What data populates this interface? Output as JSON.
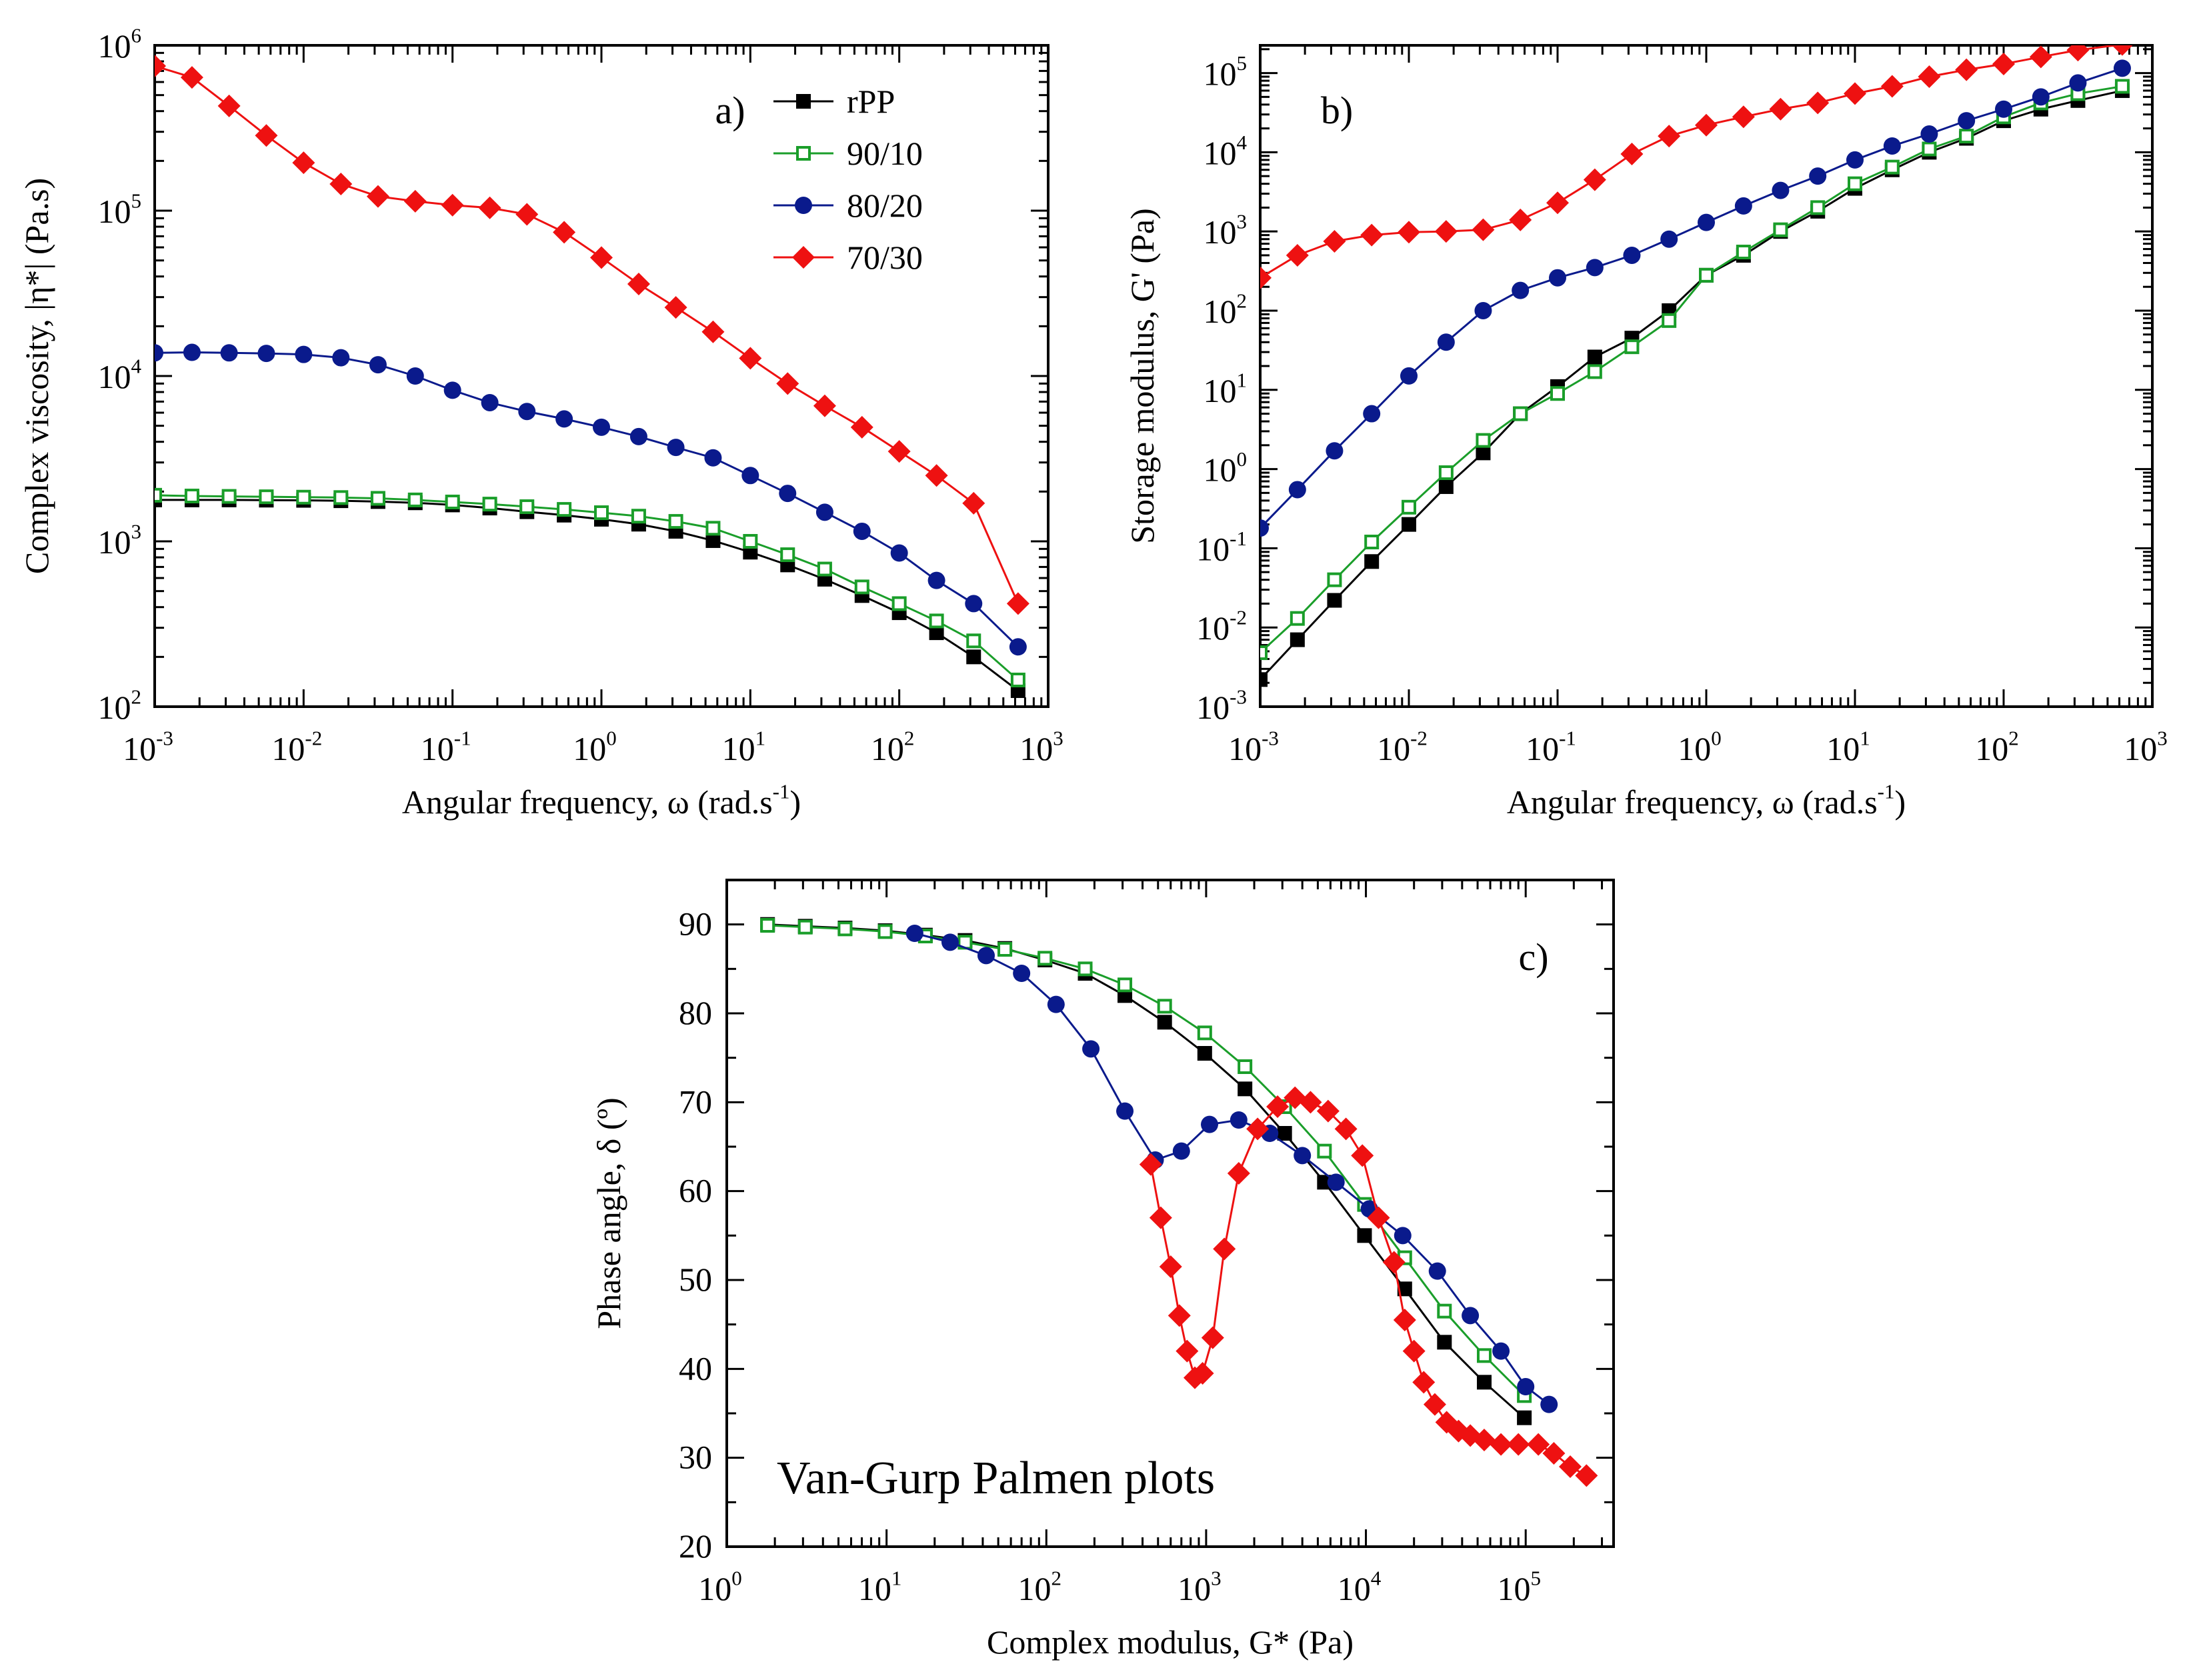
{
  "chart_data": [
    {
      "type": "line",
      "panel_label": "a)",
      "xlabel": "Angular frequency, ω (rad.s",
      "xlabel_sup": "-1",
      "xlabel_end": ")",
      "ylabel": "Complex viscosity, |η*| (Pa.s)",
      "xscale": "log",
      "yscale": "log",
      "xlim_exp": [
        -3,
        3
      ],
      "ylim_exp": [
        2,
        6
      ],
      "x_ticks": [
        {
          "base": "10",
          "exp": "-3"
        },
        {
          "base": "10",
          "exp": "-2"
        },
        {
          "base": "10",
          "exp": "-1"
        },
        {
          "base": "10",
          "exp": "0"
        },
        {
          "base": "10",
          "exp": "1"
        },
        {
          "base": "10",
          "exp": "2"
        },
        {
          "base": "10",
          "exp": "3"
        }
      ],
      "y_ticks": [
        {
          "base": "10",
          "exp": "2"
        },
        {
          "base": "10",
          "exp": "3"
        },
        {
          "base": "10",
          "exp": "4"
        },
        {
          "base": "10",
          "exp": "5"
        },
        {
          "base": "10",
          "exp": "6"
        }
      ],
      "legend": {
        "placement": "top-right",
        "entries": [
          "rPP",
          "90/10",
          "80/20",
          "70/30"
        ]
      },
      "series": [
        {
          "name": "rPP",
          "color": "#000000",
          "marker": "square-filled",
          "x": [
            0.001,
            0.00178,
            0.00316,
            0.00562,
            0.01,
            0.0178,
            0.0316,
            0.0562,
            0.1,
            0.178,
            0.316,
            0.562,
            1,
            1.78,
            3.16,
            5.62,
            10,
            17.8,
            31.6,
            56.2,
            100,
            178,
            316,
            628
          ],
          "y": [
            1780,
            1780,
            1780,
            1775,
            1770,
            1760,
            1740,
            1710,
            1660,
            1590,
            1510,
            1440,
            1360,
            1270,
            1150,
            1010,
            860,
            720,
            590,
            470,
            370,
            280,
            200,
            125
          ]
        },
        {
          "name": "90/10",
          "color": "#1a9e2a",
          "marker": "square-open",
          "x": [
            0.001,
            0.00178,
            0.00316,
            0.00562,
            0.01,
            0.0178,
            0.0316,
            0.0562,
            0.1,
            0.178,
            0.316,
            0.562,
            1,
            1.78,
            3.16,
            5.62,
            10,
            17.8,
            31.6,
            56.2,
            100,
            178,
            316,
            628
          ],
          "y": [
            1900,
            1880,
            1870,
            1860,
            1850,
            1840,
            1820,
            1780,
            1730,
            1680,
            1620,
            1560,
            1490,
            1420,
            1320,
            1200,
            1000,
            830,
            680,
            530,
            420,
            330,
            250,
            145
          ]
        },
        {
          "name": "80/20",
          "color": "#0a1a8c",
          "marker": "circle-filled",
          "x": [
            0.001,
            0.00178,
            0.00316,
            0.00562,
            0.01,
            0.0178,
            0.0316,
            0.0562,
            0.1,
            0.178,
            0.316,
            0.562,
            1,
            1.78,
            3.16,
            5.62,
            10,
            17.8,
            31.6,
            56.2,
            100,
            178,
            316,
            628
          ],
          "y": [
            13800,
            13900,
            13800,
            13700,
            13500,
            12900,
            11700,
            10000,
            8200,
            6900,
            6100,
            5500,
            4900,
            4300,
            3700,
            3200,
            2500,
            1950,
            1500,
            1150,
            850,
            580,
            420,
            230
          ]
        },
        {
          "name": "70/30",
          "color": "#ee1111",
          "marker": "diamond-filled",
          "x": [
            0.001,
            0.00178,
            0.00316,
            0.00562,
            0.01,
            0.0178,
            0.0316,
            0.0562,
            0.1,
            0.178,
            0.316,
            0.562,
            1,
            1.78,
            3.16,
            5.62,
            10,
            17.8,
            31.6,
            56.2,
            100,
            178,
            316,
            628
          ],
          "y": [
            750000,
            640000,
            430000,
            285000,
            195000,
            145000,
            122000,
            114000,
            108000,
            104000,
            95000,
            74000,
            52000,
            36000,
            26000,
            18500,
            12800,
            9000,
            6600,
            4900,
            3500,
            2500,
            1700,
            420
          ]
        }
      ]
    },
    {
      "type": "line",
      "panel_label": "b)",
      "xlabel": "Angular frequency, ω (rad.s",
      "xlabel_sup": "-1",
      "xlabel_end": ")",
      "ylabel": "Storage modulus, G' (Pa)",
      "xscale": "log",
      "yscale": "log",
      "xlim_exp": [
        -3,
        3
      ],
      "ylim_exp": [
        -3,
        5.35
      ],
      "x_ticks": [
        {
          "base": "10",
          "exp": "-3"
        },
        {
          "base": "10",
          "exp": "-2"
        },
        {
          "base": "10",
          "exp": "-1"
        },
        {
          "base": "10",
          "exp": "0"
        },
        {
          "base": "10",
          "exp": "1"
        },
        {
          "base": "10",
          "exp": "2"
        },
        {
          "base": "10",
          "exp": "3"
        }
      ],
      "y_ticks": [
        {
          "base": "10",
          "exp": "-3"
        },
        {
          "base": "10",
          "exp": "-2"
        },
        {
          "base": "10",
          "exp": "-1"
        },
        {
          "base": "10",
          "exp": "0"
        },
        {
          "base": "10",
          "exp": "1"
        },
        {
          "base": "10",
          "exp": "2"
        },
        {
          "base": "10",
          "exp": "3"
        },
        {
          "base": "10",
          "exp": "4"
        },
        {
          "base": "10",
          "exp": "5"
        }
      ],
      "series": [
        {
          "name": "rPP",
          "color": "#000000",
          "marker": "square-filled",
          "x": [
            0.001,
            0.00178,
            0.00316,
            0.00562,
            0.01,
            0.0178,
            0.0316,
            0.0562,
            0.1,
            0.178,
            0.316,
            0.562,
            1,
            1.78,
            3.16,
            5.62,
            10,
            17.8,
            31.6,
            56.2,
            100,
            178,
            316,
            628
          ],
          "y": [
            0.0022,
            0.007,
            0.022,
            0.068,
            0.2,
            0.6,
            1.6,
            5,
            11,
            26,
            45,
            100,
            280,
            500,
            1000,
            1800,
            3500,
            6000,
            10000,
            15000,
            25000,
            35000,
            45000,
            60000
          ]
        },
        {
          "name": "90/10",
          "color": "#1a9e2a",
          "marker": "square-open",
          "x": [
            0.001,
            0.00178,
            0.00316,
            0.00562,
            0.01,
            0.0178,
            0.0316,
            0.0562,
            0.1,
            0.178,
            0.316,
            0.562,
            1,
            1.78,
            3.16,
            5.62,
            10,
            17.8,
            31.6,
            56.2,
            100,
            178,
            316,
            628
          ],
          "y": [
            0.0048,
            0.013,
            0.04,
            0.12,
            0.33,
            0.9,
            2.3,
            5,
            9,
            17,
            35,
            75,
            280,
            550,
            1050,
            2000,
            4000,
            6500,
            11000,
            16000,
            28000,
            42000,
            55000,
            68000
          ]
        },
        {
          "name": "80/20",
          "color": "#0a1a8c",
          "marker": "circle-filled",
          "x": [
            0.001,
            0.00178,
            0.00316,
            0.00562,
            0.01,
            0.0178,
            0.0316,
            0.0562,
            0.1,
            0.178,
            0.316,
            0.562,
            1,
            1.78,
            3.16,
            5.62,
            10,
            17.8,
            31.6,
            56.2,
            100,
            178,
            316,
            628
          ],
          "y": [
            0.18,
            0.55,
            1.7,
            5,
            15,
            40,
            100,
            180,
            260,
            350,
            500,
            800,
            1300,
            2100,
            3300,
            5000,
            8000,
            12000,
            17000,
            25000,
            35000,
            50000,
            75000,
            115000
          ]
        },
        {
          "name": "70/30",
          "color": "#ee1111",
          "marker": "diamond-filled",
          "x": [
            0.001,
            0.00178,
            0.00316,
            0.00562,
            0.01,
            0.0178,
            0.0316,
            0.0562,
            0.1,
            0.178,
            0.316,
            0.562,
            1,
            1.78,
            3.16,
            5.62,
            10,
            17.8,
            31.6,
            56.2,
            100,
            178,
            316,
            628
          ],
          "y": [
            260,
            500,
            750,
            900,
            980,
            1000,
            1050,
            1400,
            2300,
            4500,
            9500,
            16000,
            22000,
            28000,
            35000,
            42000,
            55000,
            68000,
            90000,
            110000,
            130000,
            160000,
            195000,
            230000
          ]
        }
      ]
    },
    {
      "type": "line",
      "panel_label": "c)",
      "annotation": "Van-Gurp Palmen plots",
      "xlabel": "Complex modulus, G* (Pa)",
      "ylabel": "Phase angle, δ (º)",
      "xscale": "log",
      "yscale": "linear",
      "xlim_exp": [
        0,
        5.55
      ],
      "ylim": [
        20,
        95
      ],
      "x_ticks": [
        {
          "base": "10",
          "exp": "0"
        },
        {
          "base": "10",
          "exp": "1"
        },
        {
          "base": "10",
          "exp": "2"
        },
        {
          "base": "10",
          "exp": "3"
        },
        {
          "base": "10",
          "exp": "4"
        },
        {
          "base": "10",
          "exp": "5"
        }
      ],
      "y_ticks": [
        "20",
        "30",
        "40",
        "50",
        "60",
        "70",
        "80",
        "90"
      ],
      "series": [
        {
          "name": "rPP",
          "color": "#000000",
          "marker": "square-filled",
          "x": [
            1.8,
            3.1,
            5.5,
            9.8,
            17.5,
            31,
            55,
            98,
            175,
            310,
            550,
            980,
            1750,
            3100,
            5500,
            9800,
            17500,
            31000,
            55000,
            98000
          ],
          "y": [
            90,
            89.8,
            89.6,
            89.3,
            88.8,
            88.2,
            87.3,
            86,
            84.5,
            82,
            79,
            75.5,
            71.5,
            66.5,
            61,
            55,
            49,
            43,
            38.5,
            34.5
          ]
        },
        {
          "name": "90/10",
          "color": "#1a9e2a",
          "marker": "square-open",
          "x": [
            1.8,
            3.1,
            5.5,
            9.8,
            17.5,
            31,
            55,
            98,
            175,
            310,
            550,
            980,
            1750,
            3100,
            5500,
            9800,
            17500,
            31000,
            55000,
            98000
          ],
          "y": [
            89.9,
            89.7,
            89.5,
            89.2,
            88.7,
            88,
            87.2,
            86.2,
            85,
            83.2,
            80.8,
            77.8,
            74,
            69.5,
            64.5,
            58.5,
            52.5,
            46.5,
            41.5,
            37
          ]
        },
        {
          "name": "80/20",
          "color": "#0a1a8c",
          "marker": "circle-filled",
          "x": [
            15,
            25,
            42,
            70,
            115,
            190,
            310,
            480,
            700,
            1050,
            1600,
            2500,
            4000,
            6500,
            10500,
            17000,
            28000,
            45000,
            70000,
            100000,
            140000
          ],
          "y": [
            89,
            88,
            86.5,
            84.5,
            81,
            76,
            69,
            63.5,
            64.5,
            67.5,
            68,
            66.5,
            64,
            61,
            58,
            55,
            51,
            46,
            42,
            38,
            36
          ]
        },
        {
          "name": "70/30",
          "color": "#ee1111",
          "marker": "diamond-filled",
          "x": [
            450,
            520,
            600,
            680,
            760,
            850,
            950,
            1100,
            1300,
            1600,
            2100,
            2800,
            3600,
            4500,
            5800,
            7500,
            9500,
            12000,
            15000,
            17500,
            20000,
            23000,
            27000,
            32000,
            38000,
            45000,
            55000,
            70000,
            90000,
            120000,
            150000,
            190000,
            240000
          ],
          "y": [
            63,
            57,
            51.5,
            46,
            42,
            39,
            39.5,
            43.5,
            53.5,
            62,
            67,
            69.5,
            70.5,
            70,
            69,
            67,
            64,
            57,
            52,
            45.5,
            42,
            38.5,
            36,
            34,
            33,
            32.5,
            32,
            31.5,
            31.5,
            31.5,
            30.5,
            29,
            28
          ]
        }
      ]
    }
  ]
}
